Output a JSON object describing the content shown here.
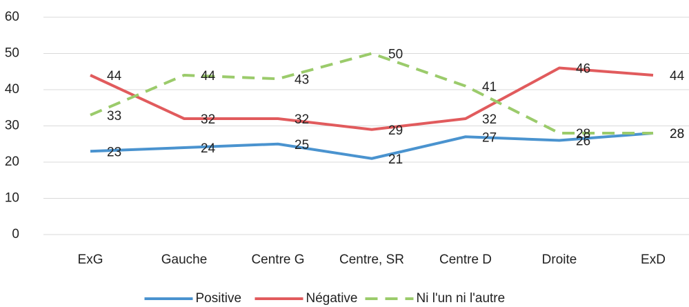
{
  "chart_data": {
    "type": "line",
    "categories": [
      "ExG",
      "Gauche",
      "Centre G",
      "Centre, SR",
      "Centre D",
      "Droite",
      "ExD"
    ],
    "series": [
      {
        "name": "Positive",
        "color": "#4a93cf",
        "dashed": false,
        "values": [
          23,
          24,
          25,
          21,
          27,
          26,
          28
        ]
      },
      {
        "name": "Négative",
        "color": "#e15b5d",
        "dashed": false,
        "values": [
          44,
          32,
          32,
          29,
          32,
          46,
          44
        ]
      },
      {
        "name": "Ni l'un ni l'autre",
        "color": "#9bcb6b",
        "dashed": true,
        "values": [
          33,
          44,
          43,
          50,
          41,
          28,
          28
        ]
      }
    ],
    "ylim": [
      0,
      60
    ],
    "yticks": [
      0,
      10,
      20,
      30,
      40,
      50,
      60
    ],
    "grid": true,
    "data_labels": true,
    "legend": "bottom"
  }
}
